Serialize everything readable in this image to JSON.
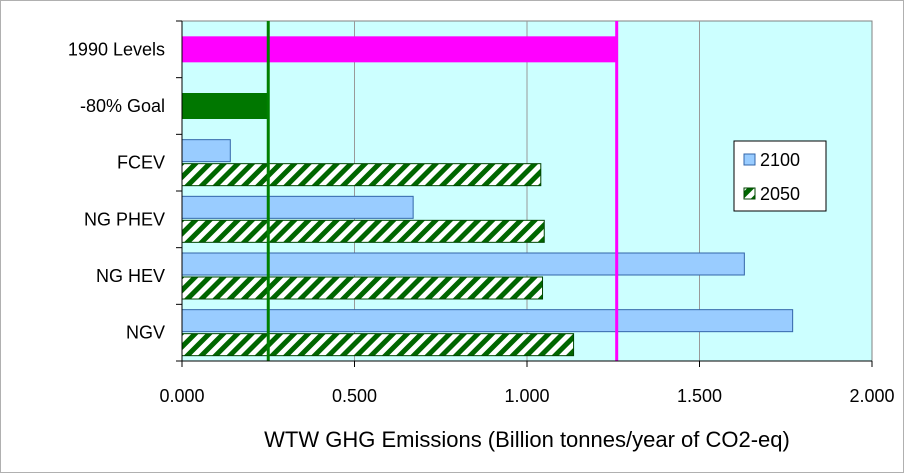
{
  "chart_data": {
    "type": "bar",
    "orientation": "horizontal",
    "categories": [
      "1990 Levels",
      "-80% Goal",
      "FCEV",
      "NG PHEV",
      "NG HEV",
      "NGV"
    ],
    "series": [
      {
        "name": "2100",
        "values": [
          null,
          null,
          0.14,
          0.67,
          1.63,
          1.77
        ],
        "color": "#99ccff",
        "pattern": "solid"
      },
      {
        "name": "2050",
        "values": [
          null,
          null,
          1.04,
          1.05,
          1.045,
          1.135
        ],
        "color": "#006600",
        "pattern": "diagonal-stripe"
      }
    ],
    "reference_bars": [
      {
        "category": "1990 Levels",
        "value": 1.26,
        "color": "#ff00ff"
      },
      {
        "category": "-80% Goal",
        "value": 0.25,
        "color": "#007700"
      }
    ],
    "reference_lines": [
      {
        "value": 0.25,
        "color": "#008000"
      },
      {
        "value": 1.26,
        "color": "#ff00ff"
      }
    ],
    "x_ticks": [
      "0.000",
      "0.500",
      "1.000",
      "1.500",
      "2.000"
    ],
    "xlim": [
      0,
      2
    ],
    "xlabel": "WTW GHG Emissions (Billion tonnes/year of CO2-eq)",
    "ylabel": "",
    "title": "",
    "grid": "vertical",
    "legend_position": "right",
    "plot_background": "#ccffff"
  }
}
